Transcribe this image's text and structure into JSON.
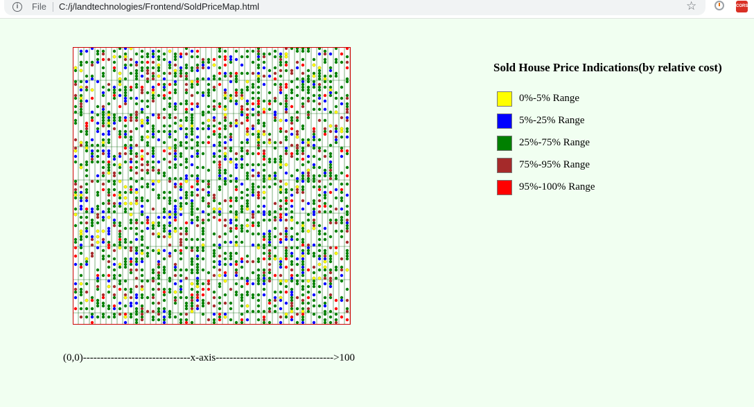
{
  "browser": {
    "file_label": "File",
    "url": "C:/j/landtechnologies/Frontend/SoldPriceMap.html",
    "star_icon": "star-icon",
    "extension_icon": "chrome-extension-icon",
    "cors_label": "CORS"
  },
  "map": {
    "axis_label": "(0,0)-------------------------------x-axis---------------------------------->100",
    "grid_color": "#006400",
    "border_color": "#cc0000",
    "background": "#ffffff"
  },
  "legend": {
    "title": "Sold House Price Indications(by relative cost)",
    "items": [
      {
        "label": "0%-5% Range",
        "color": "#ffff00"
      },
      {
        "label": "5%-25% Range",
        "color": "#0000ff"
      },
      {
        "label": "25%-75% Range",
        "color": "#008000"
      },
      {
        "label": "75%-95% Range",
        "color": "#a52a2a"
      },
      {
        "label": "95%-100% Range",
        "color": "#ff0000"
      }
    ]
  }
}
